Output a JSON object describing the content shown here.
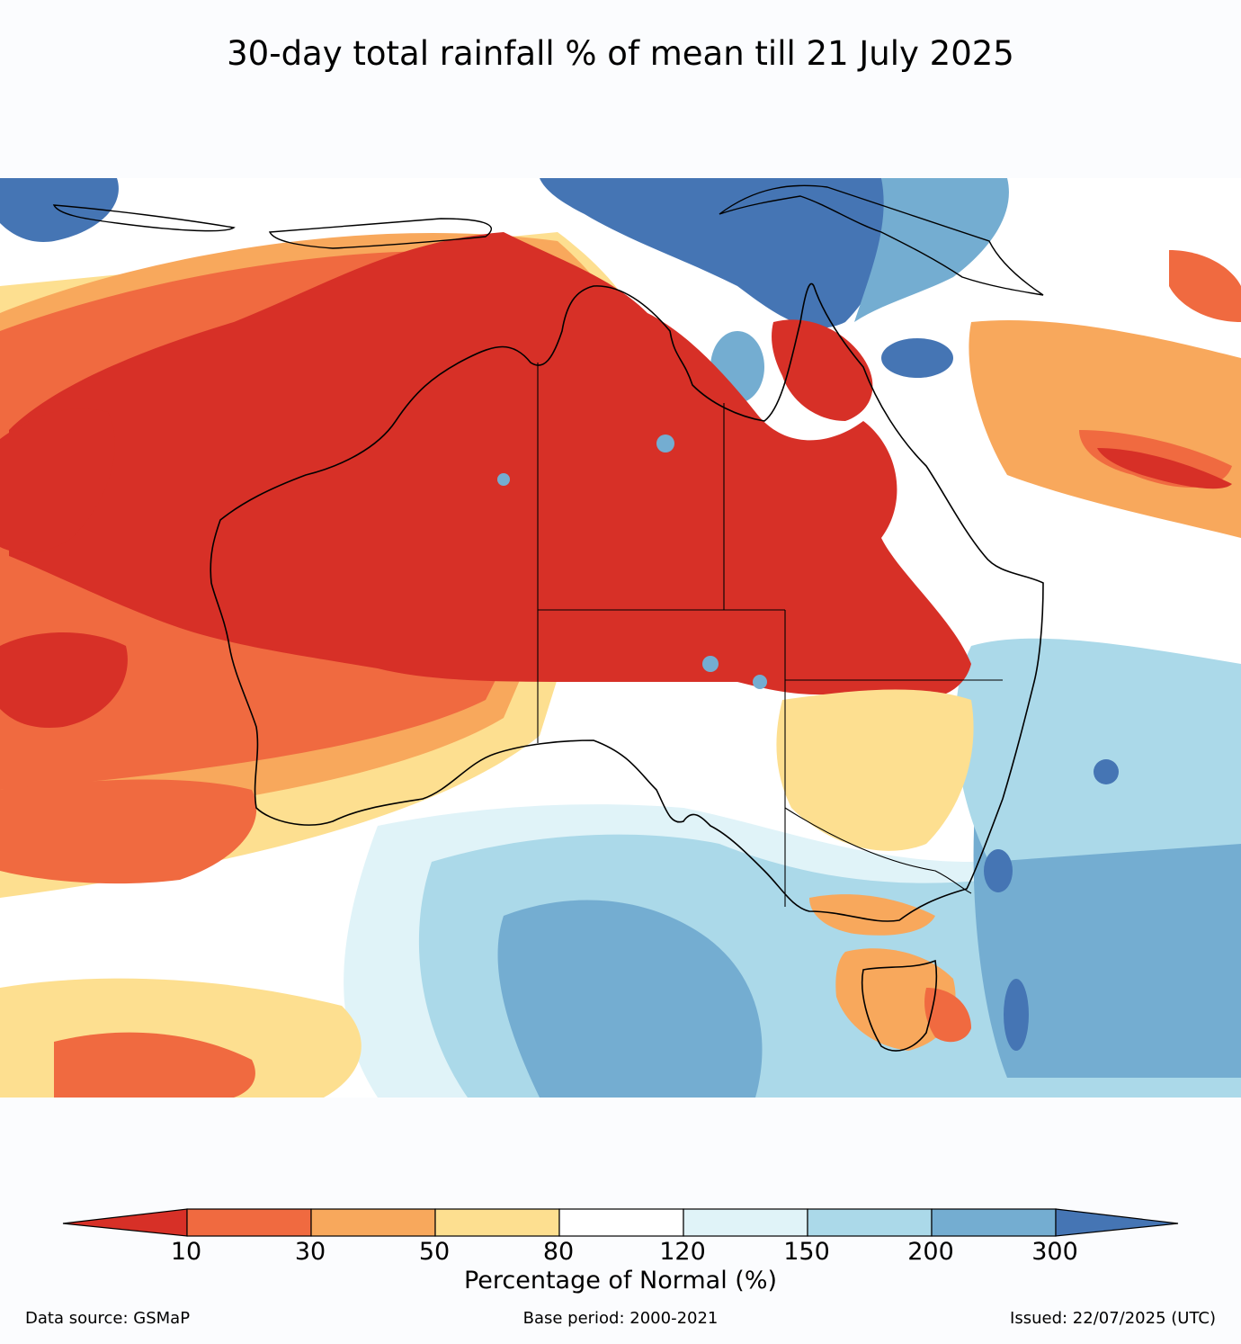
{
  "title": "30-day total rainfall % of mean till 21 July 2025",
  "colorbar": {
    "label": "Percentage of Normal (%)",
    "ticks": [
      "10",
      "30",
      "50",
      "80",
      "120",
      "150",
      "200",
      "300"
    ],
    "colors": [
      "#d73027",
      "#f06a40",
      "#f8a85c",
      "#fddf90",
      "#ffffff",
      "#e0f3f8",
      "#abd9e9",
      "#74add1",
      "#4575b4"
    ]
  },
  "footer": {
    "source": "Data source: GSMaP",
    "base_period": "Base period: 2000-2021",
    "issued": "Issued: 22/07/2025 (UTC)"
  },
  "map": {
    "region": "Australia",
    "colors": {
      "very_dry": "#d73027",
      "dry": "#f06a40",
      "below": "#f8a85c",
      "slightly_below": "#fddf90",
      "normal": "#ffffff",
      "slightly_above": "#e0f3f8",
      "above": "#abd9e9",
      "well_above": "#74add1",
      "very_wet": "#4575b4"
    }
  }
}
